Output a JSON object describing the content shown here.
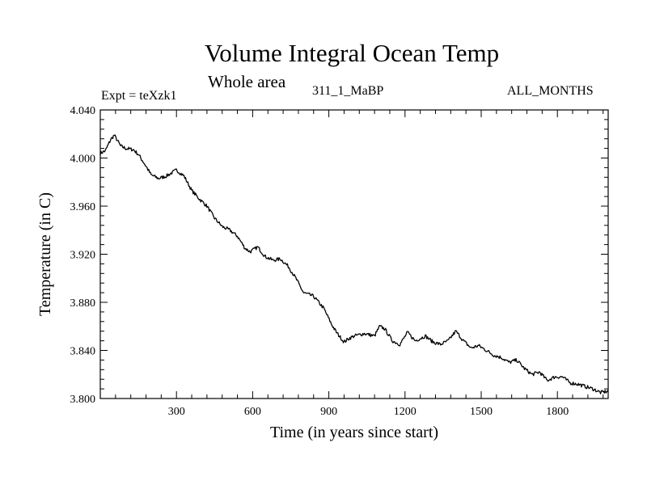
{
  "header": {
    "expt": "Expt = teXzk1",
    "case": "311_1_MaBP",
    "months": "ALL_MONTHS"
  },
  "chart_data": {
    "type": "line",
    "title": "Volume Integral Ocean Temp",
    "subtitle": "Whole area",
    "xlabel": "Time (in years since start)",
    "ylabel": "Temperature (in C)",
    "xlim": [
      0,
      2000
    ],
    "ylim": [
      3.8,
      4.04
    ],
    "xticks": [
      300,
      600,
      900,
      1200,
      1500,
      1800
    ],
    "xtick_labels": [
      "300",
      "600",
      "900",
      "1200",
      "1500",
      "1800"
    ],
    "yticks": [
      3.8,
      3.84,
      3.88,
      3.92,
      3.96,
      4.0,
      4.04
    ],
    "ytick_labels": [
      "3.800",
      "3.840",
      "3.880",
      "3.920",
      "3.960",
      "4.000",
      "4.040"
    ],
    "grid": false,
    "series": [
      {
        "name": "Volume integral ocean temperature",
        "x": [
          0,
          20,
          40,
          55,
          80,
          100,
          130,
          150,
          175,
          200,
          230,
          260,
          300,
          330,
          360,
          390,
          420,
          450,
          480,
          510,
          540,
          570,
          590,
          620,
          650,
          680,
          710,
          740,
          770,
          800,
          840,
          880,
          910,
          930,
          960,
          980,
          1000,
          1040,
          1080,
          1100,
          1120,
          1150,
          1180,
          1210,
          1240,
          1280,
          1310,
          1340,
          1370,
          1400,
          1430,
          1460,
          1490,
          1520,
          1550,
          1580,
          1610,
          1640,
          1670,
          1700,
          1730,
          1760,
          1790,
          1820,
          1850,
          1880,
          1910,
          1940,
          1970,
          2000
        ],
        "values": [
          4.004,
          4.006,
          4.015,
          4.019,
          4.01,
          4.008,
          4.007,
          4.003,
          3.995,
          3.986,
          3.983,
          3.985,
          3.99,
          3.985,
          3.973,
          3.966,
          3.96,
          3.95,
          3.943,
          3.94,
          3.935,
          3.925,
          3.922,
          3.926,
          3.918,
          3.915,
          3.916,
          3.91,
          3.9,
          3.888,
          3.885,
          3.875,
          3.862,
          3.855,
          3.847,
          3.85,
          3.852,
          3.854,
          3.852,
          3.86,
          3.858,
          3.848,
          3.845,
          3.855,
          3.848,
          3.852,
          3.847,
          3.845,
          3.848,
          3.856,
          3.848,
          3.842,
          3.844,
          3.84,
          3.836,
          3.834,
          3.83,
          3.832,
          3.825,
          3.82,
          3.822,
          3.815,
          3.818,
          3.818,
          3.813,
          3.812,
          3.81,
          3.808,
          3.805,
          3.806
        ]
      }
    ]
  }
}
